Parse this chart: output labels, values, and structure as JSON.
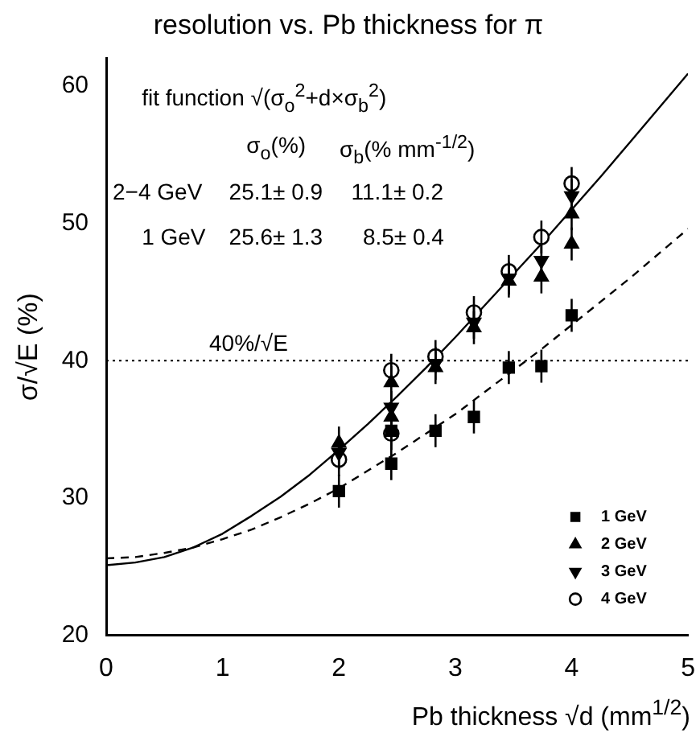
{
  "chart_data": {
    "type": "scatter",
    "title": "resolution vs. Pb thickness for π",
    "xlabel": "Pb thickness √d (mm$^{1/2}$)",
    "ylabel": "σ/√E (%)",
    "xlim": [
      0,
      5
    ],
    "xticks": [
      0,
      1,
      2,
      3,
      4,
      5
    ],
    "ylim": [
      20,
      62
    ],
    "yticks": [
      20,
      30,
      40,
      50,
      60
    ],
    "legend": "bottom right",
    "grid": false,
    "annotations": [
      "fit function √(σ$_{o}$$^{2}$+d×σ$_{b}$$^{2}$)",
      "σ$_{o}$(%)",
      "σ$_{b}$(% mm$^{-1/2}$)",
      "2−4 GeV",
      "25.1± 0.9",
      "11.1± 0.2",
      "1 GeV",
      "25.6± 1.3",
      "8.5± 0.4"
    ],
    "ref_lines": [
      {
        "axis": "y",
        "value": 40,
        "label": "40%/√E",
        "line_style": "dotted",
        "color": "#000000"
      }
    ],
    "series": [
      {
        "name": "1 GeV",
        "type": "scatter",
        "marker": "square",
        "color": "#000000",
        "x": [
          2,
          2.45,
          2.45,
          2.83,
          3.16,
          3.46,
          3.74,
          4
        ],
        "values": [
          30.5,
          32.5,
          34.9,
          34.9,
          35.9,
          39.5,
          39.6,
          43.3
        ],
        "errors": [
          1.2,
          1.2,
          1.2,
          1.2,
          1.2,
          1.2,
          1.2,
          1.2
        ]
      },
      {
        "name": "2 GeV",
        "type": "scatter",
        "marker": "triangle",
        "color": "#000000",
        "x": [
          2,
          2.45,
          2.45,
          2.83,
          3.16,
          3.46,
          3.74,
          4,
          4
        ],
        "values": [
          34.0,
          38.4,
          35.9,
          39.5,
          42.4,
          45.8,
          46.1,
          50.7,
          48.5
        ],
        "errors": [
          1.2,
          1.2,
          1.2,
          1.2,
          1.2,
          1.2,
          1.2,
          1.2,
          1.2
        ]
      },
      {
        "name": "3 GeV",
        "type": "scatter",
        "marker": "triangle-down",
        "color": "#000000",
        "x": [
          2,
          2.45,
          2.83,
          3.16,
          3.46,
          3.74,
          4
        ],
        "values": [
          33.3,
          36.6,
          39.8,
          42.8,
          46.0,
          47.3,
          52.0
        ],
        "errors": [
          1.2,
          1.2,
          1.2,
          1.2,
          1.2,
          1.2,
          1.2
        ]
      },
      {
        "name": "4 GeV",
        "type": "scatter",
        "marker": "circle",
        "color": "#000000",
        "x": [
          2,
          2.45,
          2.45,
          2.83,
          3.16,
          3.46,
          3.74,
          4
        ],
        "values": [
          32.8,
          39.3,
          34.7,
          40.3,
          43.5,
          46.5,
          49.0,
          52.9
        ],
        "errors": [
          1.2,
          1.2,
          1.2,
          1.2,
          1.2,
          1.2,
          1.2,
          1.2
        ]
      },
      {
        "type": "line",
        "marker": "none",
        "line_style": "solid",
        "color": "#000000",
        "x": [
          0,
          0.25,
          0.5,
          0.75,
          1,
          1.25,
          1.5,
          1.75,
          2,
          2.25,
          2.5,
          2.75,
          3,
          3.25,
          3.5,
          3.75,
          4,
          4.25,
          4.5,
          4.75,
          5
        ],
        "values": [
          25.1,
          25.3,
          25.7,
          26.4,
          27.4,
          28.7,
          30.1,
          31.7,
          33.5,
          35.4,
          37.4,
          39.5,
          41.7,
          44.0,
          46.3,
          48.6,
          51.0,
          53.4,
          55.9,
          58.4,
          60.9
        ]
      },
      {
        "type": "line",
        "marker": "none",
        "line_style": "dashed",
        "color": "#000000",
        "x": [
          0,
          0.25,
          0.5,
          0.75,
          1,
          1.25,
          1.5,
          1.75,
          2,
          2.25,
          2.5,
          2.75,
          3,
          3.25,
          3.5,
          3.75,
          4,
          4.25,
          4.5,
          4.75,
          5
        ],
        "values": [
          25.6,
          25.7,
          26.0,
          26.4,
          27.0,
          27.7,
          28.6,
          29.6,
          30.7,
          32.0,
          33.3,
          34.7,
          36.1,
          37.7,
          39.3,
          40.9,
          42.6,
          44.3,
          46.0,
          47.8,
          49.6
        ]
      }
    ]
  }
}
